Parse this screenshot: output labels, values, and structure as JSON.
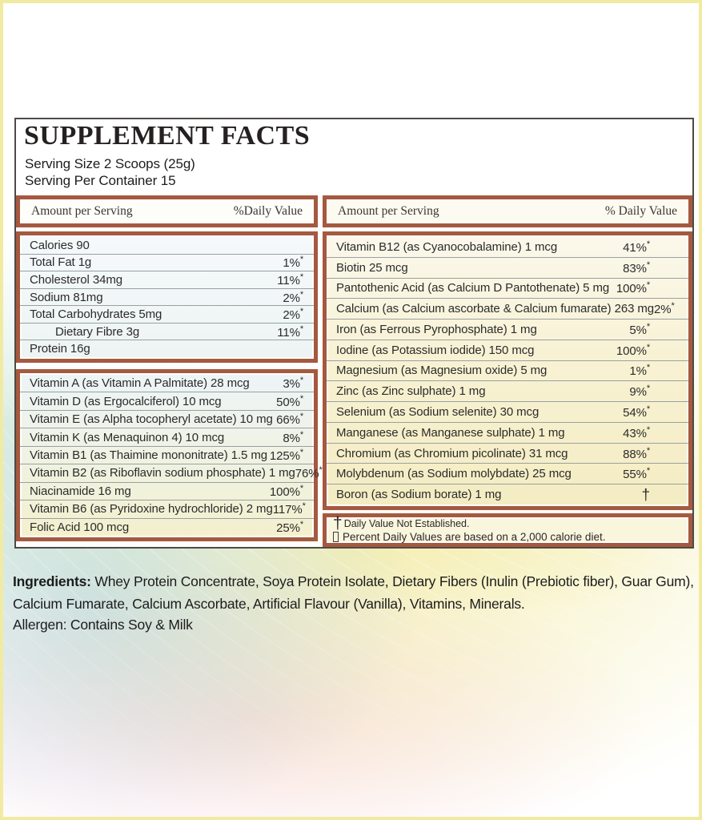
{
  "colors": {
    "accent_brown": "#a5593f",
    "page_border_yellow": "#f1eba2",
    "panel_border": "#4e4a46"
  },
  "header": {
    "title": "SUPPLEMENT FACTS",
    "serving_size": "Serving Size 2 Scoops (25g)",
    "serving_per_container": "Serving Per Container 15"
  },
  "left_column": {
    "header": {
      "amount": "Amount per Serving",
      "daily": "%Daily Value"
    },
    "macros": [
      {
        "label": "Calories  90",
        "pct": "",
        "mark": ""
      },
      {
        "label": "Total Fat 1g",
        "pct": "1%",
        "mark": "*"
      },
      {
        "label": "Cholesterol 34mg",
        "pct": "11%",
        "mark": "*"
      },
      {
        "label": "Sodium  81mg",
        "pct": "2%",
        "mark": "*"
      },
      {
        "label": "Total Carbohydrates  5mg",
        "pct": "2%",
        "mark": "*"
      },
      {
        "label": "Dietary Fibre 3g",
        "pct": "11%",
        "mark": "*",
        "cls": "indent"
      },
      {
        "label": "Protein  16g",
        "pct": "",
        "mark": ""
      }
    ],
    "vitamins": [
      {
        "label": "Vitamin A (as Vitamin A Palmitate)  28 mcg",
        "pct": "3%",
        "mark": "*"
      },
      {
        "label": "Vitamin D (as Ergocalciferol)  10 mcg",
        "pct": "50%",
        "mark": "*"
      },
      {
        "label": "Vitamin E (as Alpha tocopheryl acetate)  10 mg",
        "pct": "66%",
        "mark": "*"
      },
      {
        "label": "Vitamin K (as Menaquinon 4)  10 mcg",
        "pct": "8%",
        "mark": "*"
      },
      {
        "label": "Vitamin B1 (as Thaimine mononitrate)  1.5 mg",
        "pct": "125%",
        "mark": "*"
      },
      {
        "label": "Vitamin B2 (as Riboflavin sodium phosphate)  1 mg",
        "pct": "76%",
        "mark": "*"
      },
      {
        "label": "Niacinamide  16 mg",
        "pct": "100%",
        "mark": "*"
      },
      {
        "label": "Vitamin B6 (as Pyridoxine hydrochloride)  2 mg",
        "pct": "117%",
        "mark": "*"
      },
      {
        "label": "Folic Acid  100 mcg",
        "pct": "25%",
        "mark": "*"
      }
    ]
  },
  "right_column": {
    "header": {
      "amount": "Amount per Serving",
      "daily": "% Daily Value"
    },
    "rows": [
      {
        "label": "Vitamin B12 (as Cyanocobalamine)  1 mcg",
        "pct": "41%",
        "mark": "*"
      },
      {
        "label": "Biotin  25 mcg",
        "pct": "83%",
        "mark": "*"
      },
      {
        "label": "Pantothenic Acid (as Calcium D Pantothenate)  5 mg",
        "pct": "100%",
        "mark": "*"
      },
      {
        "label": "Calcium (as Calcium ascorbate & Calcium fumarate)  263 mg",
        "pct": "2%",
        "mark": "*"
      },
      {
        "label": "Iron (as Ferrous Pyrophosphate)  1 mg",
        "pct": "5%",
        "mark": "*"
      },
      {
        "label": "Iodine (as Potassium iodide)  150 mcg",
        "pct": "100%",
        "mark": "*"
      },
      {
        "label": "Magnesium (as Magnesium oxide)  5 mg",
        "pct": "1%",
        "mark": "*"
      },
      {
        "label": "Zinc (as Zinc sulphate)  1 mg",
        "pct": "9%",
        "mark": "*"
      },
      {
        "label": "Selenium (as Sodium selenite)  30 mcg",
        "pct": "54%",
        "mark": "*"
      },
      {
        "label": "Manganese (as Manganese sulphate)  1 mg",
        "pct": "43%",
        "mark": "*"
      },
      {
        "label": "Chromium (as Chromium picolinate)  31 mcg",
        "pct": "88%",
        "mark": "*"
      },
      {
        "label": "Molybdenum (as Sodium molybdate)  25 mcg",
        "pct": "55%",
        "mark": "*"
      },
      {
        "label": "Boron (as Sodium borate)  1 mg",
        "pct": "",
        "mark": "†",
        "cls": "dagger"
      }
    ],
    "footnotes": {
      "dagger_symbol": "†",
      "dagger_text": "Daily Value Not Established.",
      "percent_text": "Percent Daily Values are based on a 2,000 calorie  diet."
    }
  },
  "ingredients": {
    "label": "Ingredients:",
    "text": " Whey Protein Concentrate, Soya Protein Isolate, Dietary Fibers (Inulin (Prebiotic fiber), Guar Gum), Calcium Fumarate, Calcium Ascorbate, Artificial Flavour (Vanilla),  Vitamins, Minerals."
  },
  "allergen": "Allergen: Contains Soy & Milk"
}
